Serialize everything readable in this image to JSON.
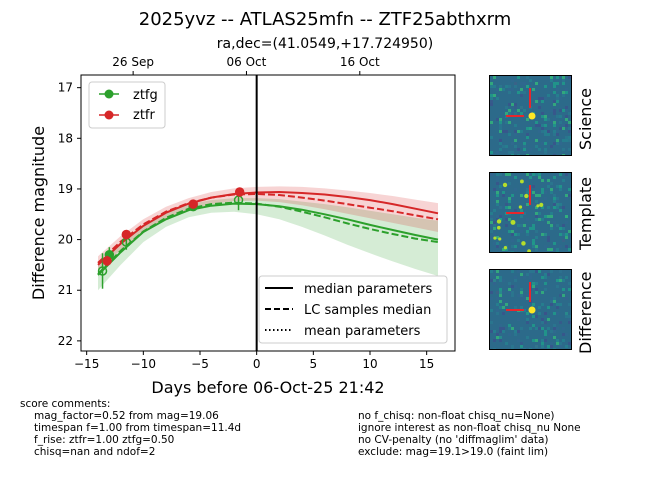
{
  "title": "2025yvz -- ATLAS25mfn -- ZTF25abthxrm",
  "subtitle": "ra,dec=(41.0549,+17.724950)",
  "chart_data": {
    "type": "scatter",
    "xlabel": "Days before 06-Oct-25 21:42",
    "ylabel": "Difference magnitude",
    "xlim": [
      -15.5,
      17.5
    ],
    "ylim": [
      22.2,
      16.75
    ],
    "y_inverted": true,
    "xticks": [
      -15,
      -10,
      -5,
      0,
      5,
      10,
      15
    ],
    "xtick_labels": [
      "−15",
      "−10",
      "−5",
      "0",
      "5",
      "10",
      "15"
    ],
    "yticks": [
      17,
      18,
      19,
      20,
      21,
      22
    ],
    "top_axis_ticks": [
      {
        "x": -10.9,
        "label": "26 Sep"
      },
      {
        "x": -0.9,
        "label": "06 Oct"
      },
      {
        "x": 9.1,
        "label": "16 Oct"
      }
    ],
    "vertical_line_x": 0,
    "series": [
      {
        "name": "ztfg",
        "color": "#2ca02c",
        "points": [
          {
            "x": -13.6,
            "y": 20.62,
            "err": 0.35,
            "filled": false
          },
          {
            "x": -13.0,
            "y": 20.3,
            "err": 0.15,
            "filled": true
          },
          {
            "x": -11.5,
            "y": 20.05,
            "err": 0.15,
            "filled": false
          },
          {
            "x": -5.6,
            "y": 19.35,
            "err": 0.06,
            "filled": true
          },
          {
            "x": -1.6,
            "y": 19.22,
            "err": 0.2,
            "filled": false
          }
        ],
        "median_curve": [
          [
            -14,
            20.7
          ],
          [
            -12,
            20.25
          ],
          [
            -10,
            19.85
          ],
          [
            -8,
            19.6
          ],
          [
            -6,
            19.42
          ],
          [
            -4,
            19.33
          ],
          [
            -2,
            19.29
          ],
          [
            0,
            19.3
          ],
          [
            2,
            19.34
          ],
          [
            4,
            19.41
          ],
          [
            6,
            19.5
          ],
          [
            8,
            19.6
          ],
          [
            10,
            19.71
          ],
          [
            12,
            19.81
          ],
          [
            14,
            19.91
          ],
          [
            16,
            20.0
          ]
        ],
        "samples_curve": [
          [
            -14,
            20.68
          ],
          [
            -12,
            20.22
          ],
          [
            -10,
            19.84
          ],
          [
            -8,
            19.57
          ],
          [
            -6,
            19.39
          ],
          [
            -4,
            19.3
          ],
          [
            -2,
            19.27
          ],
          [
            0,
            19.29
          ],
          [
            2,
            19.35
          ],
          [
            4,
            19.45
          ],
          [
            6,
            19.56
          ],
          [
            8,
            19.68
          ],
          [
            10,
            19.79
          ],
          [
            12,
            19.89
          ],
          [
            14,
            19.98
          ],
          [
            16,
            20.05
          ]
        ],
        "band_upper": [
          [
            -14,
            20.45
          ],
          [
            -12,
            20.05
          ],
          [
            -10,
            19.7
          ],
          [
            -8,
            19.46
          ],
          [
            -6,
            19.3
          ],
          [
            -4,
            19.22
          ],
          [
            -2,
            19.18
          ],
          [
            0,
            19.18
          ],
          [
            2,
            19.2
          ],
          [
            4,
            19.25
          ],
          [
            6,
            19.3
          ],
          [
            8,
            19.36
          ],
          [
            10,
            19.43
          ],
          [
            12,
            19.5
          ],
          [
            14,
            19.57
          ],
          [
            16,
            19.63
          ]
        ],
        "band_lower": [
          [
            -14,
            21.0
          ],
          [
            -12,
            20.5
          ],
          [
            -10,
            20.05
          ],
          [
            -8,
            19.75
          ],
          [
            -6,
            19.56
          ],
          [
            -4,
            19.47
          ],
          [
            -2,
            19.45
          ],
          [
            0,
            19.5
          ],
          [
            2,
            19.6
          ],
          [
            4,
            19.75
          ],
          [
            6,
            19.92
          ],
          [
            8,
            20.1
          ],
          [
            10,
            20.27
          ],
          [
            12,
            20.43
          ],
          [
            14,
            20.58
          ],
          [
            16,
            20.72
          ]
        ]
      },
      {
        "name": "ztfr",
        "color": "#d62728",
        "points": [
          {
            "x": -13.2,
            "y": 20.42,
            "err": 0.1,
            "filled": true
          },
          {
            "x": -11.5,
            "y": 19.9,
            "err": 0.08,
            "filled": true
          },
          {
            "x": -5.6,
            "y": 19.3,
            "err": 0.06,
            "filled": true
          },
          {
            "x": -1.5,
            "y": 19.06,
            "err": 0.06,
            "filled": true
          }
        ],
        "median_curve": [
          [
            -14,
            20.5
          ],
          [
            -12,
            20.08
          ],
          [
            -10,
            19.73
          ],
          [
            -8,
            19.47
          ],
          [
            -6,
            19.29
          ],
          [
            -4,
            19.17
          ],
          [
            -2,
            19.1
          ],
          [
            0,
            19.07
          ],
          [
            2,
            19.06
          ],
          [
            4,
            19.08
          ],
          [
            6,
            19.11
          ],
          [
            8,
            19.16
          ],
          [
            10,
            19.22
          ],
          [
            12,
            19.3
          ],
          [
            14,
            19.39
          ],
          [
            16,
            19.48
          ]
        ],
        "samples_curve": [
          [
            -14,
            20.46
          ],
          [
            -12,
            20.04
          ],
          [
            -10,
            19.7
          ],
          [
            -8,
            19.45
          ],
          [
            -6,
            19.28
          ],
          [
            -4,
            19.17
          ],
          [
            -2,
            19.11
          ],
          [
            0,
            19.1
          ],
          [
            2,
            19.12
          ],
          [
            4,
            19.17
          ],
          [
            6,
            19.23
          ],
          [
            8,
            19.3
          ],
          [
            10,
            19.37
          ],
          [
            12,
            19.44
          ],
          [
            14,
            19.52
          ],
          [
            16,
            19.6
          ]
        ],
        "band_upper": [
          [
            -14,
            20.33
          ],
          [
            -12,
            19.93
          ],
          [
            -10,
            19.6
          ],
          [
            -8,
            19.35
          ],
          [
            -6,
            19.18
          ],
          [
            -4,
            19.06
          ],
          [
            -2,
            18.99
          ],
          [
            0,
            18.96
          ],
          [
            2,
            18.95
          ],
          [
            4,
            18.96
          ],
          [
            6,
            18.99
          ],
          [
            8,
            19.03
          ],
          [
            10,
            19.08
          ],
          [
            12,
            19.14
          ],
          [
            14,
            19.21
          ],
          [
            16,
            19.28
          ]
        ],
        "band_lower": [
          [
            -14,
            20.62
          ],
          [
            -12,
            20.2
          ],
          [
            -10,
            19.86
          ],
          [
            -8,
            19.6
          ],
          [
            -6,
            19.42
          ],
          [
            -4,
            19.3
          ],
          [
            -2,
            19.24
          ],
          [
            0,
            19.23
          ],
          [
            2,
            19.26
          ],
          [
            4,
            19.32
          ],
          [
            6,
            19.4
          ],
          [
            8,
            19.49
          ],
          [
            10,
            19.58
          ],
          [
            12,
            19.67
          ],
          [
            14,
            19.76
          ],
          [
            16,
            19.85
          ]
        ]
      }
    ],
    "legend_series": {
      "placement": "upper-left",
      "entries": [
        "ztfg",
        "ztfr"
      ]
    },
    "legend_lines": {
      "placement": "lower-right",
      "entries": [
        {
          "label": "median parameters",
          "style": "solid"
        },
        {
          "label": "LC samples median",
          "style": "dashed"
        },
        {
          "label": "mean parameters",
          "style": "dotted"
        }
      ]
    }
  },
  "cutouts": [
    {
      "label": "Science",
      "has_source": true
    },
    {
      "label": "Template",
      "has_source": false
    },
    {
      "label": "Difference",
      "has_source": true
    }
  ],
  "comments": {
    "header": "score comments:",
    "left": [
      "mag_factor=0.52 from mag=19.06",
      "timespan f=1.00 from timespan=11.4d",
      "f_rise: ztfr=1.00 ztfg=0.50",
      "chisq=nan and ndof=2"
    ],
    "right": [
      "no f_chisq: non-float chisq_nu=None)",
      "ignore interest as non-float chisq_nu None",
      "no CV-penalty (no 'diffmaglim' data)",
      "exclude: mag=19.1>19.0 (faint lim)"
    ]
  }
}
